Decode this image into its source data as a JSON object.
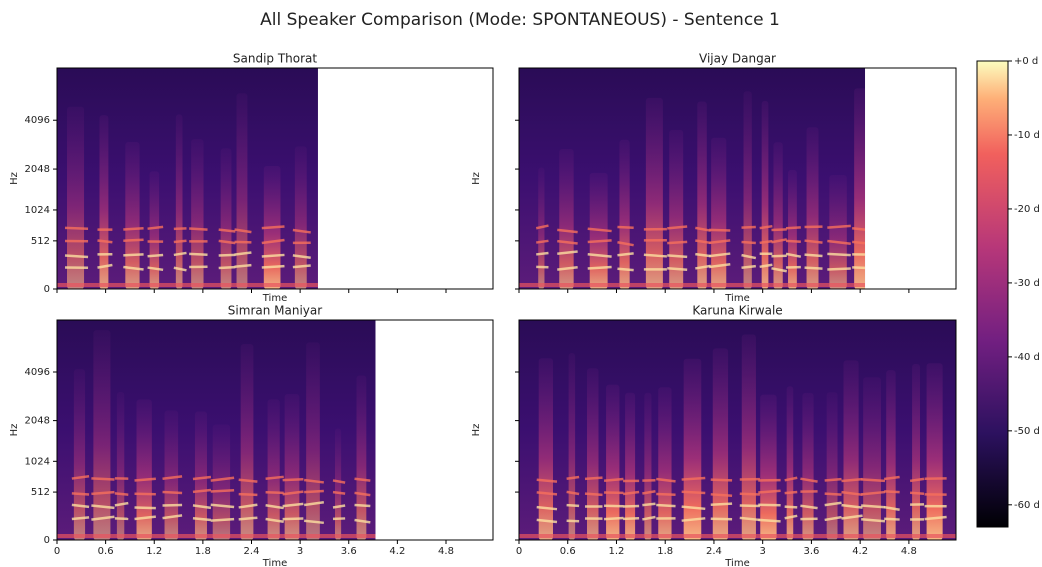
{
  "title": "All Speaker Comparison (Mode: SPONTANEOUS) - Sentence 1",
  "chart_data": [
    {
      "type": "spectrogram",
      "title": "Sandip Thorat",
      "xlabel": "Time",
      "ylabel": "Hz",
      "yscale": "mel",
      "xlim": [
        0,
        5.38
      ],
      "xticks": [
        0,
        0.6,
        1.2,
        1.8,
        2.4,
        3,
        3.6,
        4.2,
        4.8
      ],
      "show_xticklabels": false,
      "ylim": [
        0,
        8000
      ],
      "yticks": [
        0,
        512,
        1024,
        2048,
        4096
      ],
      "show_yticklabels": true,
      "duration": 3.22
    },
    {
      "type": "spectrogram",
      "title": "Vijay Dangar",
      "xlabel": "Time",
      "ylabel": "Hz",
      "yscale": "mel",
      "xlim": [
        0,
        5.38
      ],
      "xticks": [
        0,
        0.6,
        1.2,
        1.8,
        2.4,
        3,
        3.6,
        4.2,
        4.8
      ],
      "show_xticklabels": false,
      "ylim": [
        0,
        8000
      ],
      "yticks": [
        0,
        512,
        1024,
        2048,
        4096
      ],
      "show_yticklabels": false,
      "duration": 4.26
    },
    {
      "type": "spectrogram",
      "title": "Simran  Maniyar",
      "xlabel": "Time",
      "ylabel": "Hz",
      "yscale": "mel",
      "xlim": [
        0,
        5.38
      ],
      "xticks": [
        0,
        0.6,
        1.2,
        1.8,
        2.4,
        3,
        3.6,
        4.2,
        4.8
      ],
      "show_xticklabels": true,
      "ylim": [
        0,
        8000
      ],
      "yticks": [
        0,
        512,
        1024,
        2048,
        4096
      ],
      "show_yticklabels": true,
      "duration": 3.93
    },
    {
      "type": "spectrogram",
      "title": "Karuna Kirwale",
      "xlabel": "Time",
      "ylabel": "Hz",
      "yscale": "mel",
      "xlim": [
        0,
        5.38
      ],
      "xticks": [
        0,
        0.6,
        1.2,
        1.8,
        2.4,
        3,
        3.6,
        4.2,
        4.8
      ],
      "show_xticklabels": true,
      "ylim": [
        0,
        8000
      ],
      "yticks": [
        0,
        512,
        1024,
        2048,
        4096
      ],
      "show_yticklabels": false,
      "duration": 5.38
    }
  ],
  "colorbar": {
    "clim": [
      -63,
      0
    ],
    "ticks": [
      {
        "value": 0,
        "label": "+0 d"
      },
      {
        "value": -10,
        "label": "-10 d"
      },
      {
        "value": -20,
        "label": "-20 d"
      },
      {
        "value": -30,
        "label": "-30 d"
      },
      {
        "value": -40,
        "label": "-40 d"
      },
      {
        "value": -50,
        "label": "-50 d"
      },
      {
        "value": -60,
        "label": "-60 d"
      }
    ]
  }
}
